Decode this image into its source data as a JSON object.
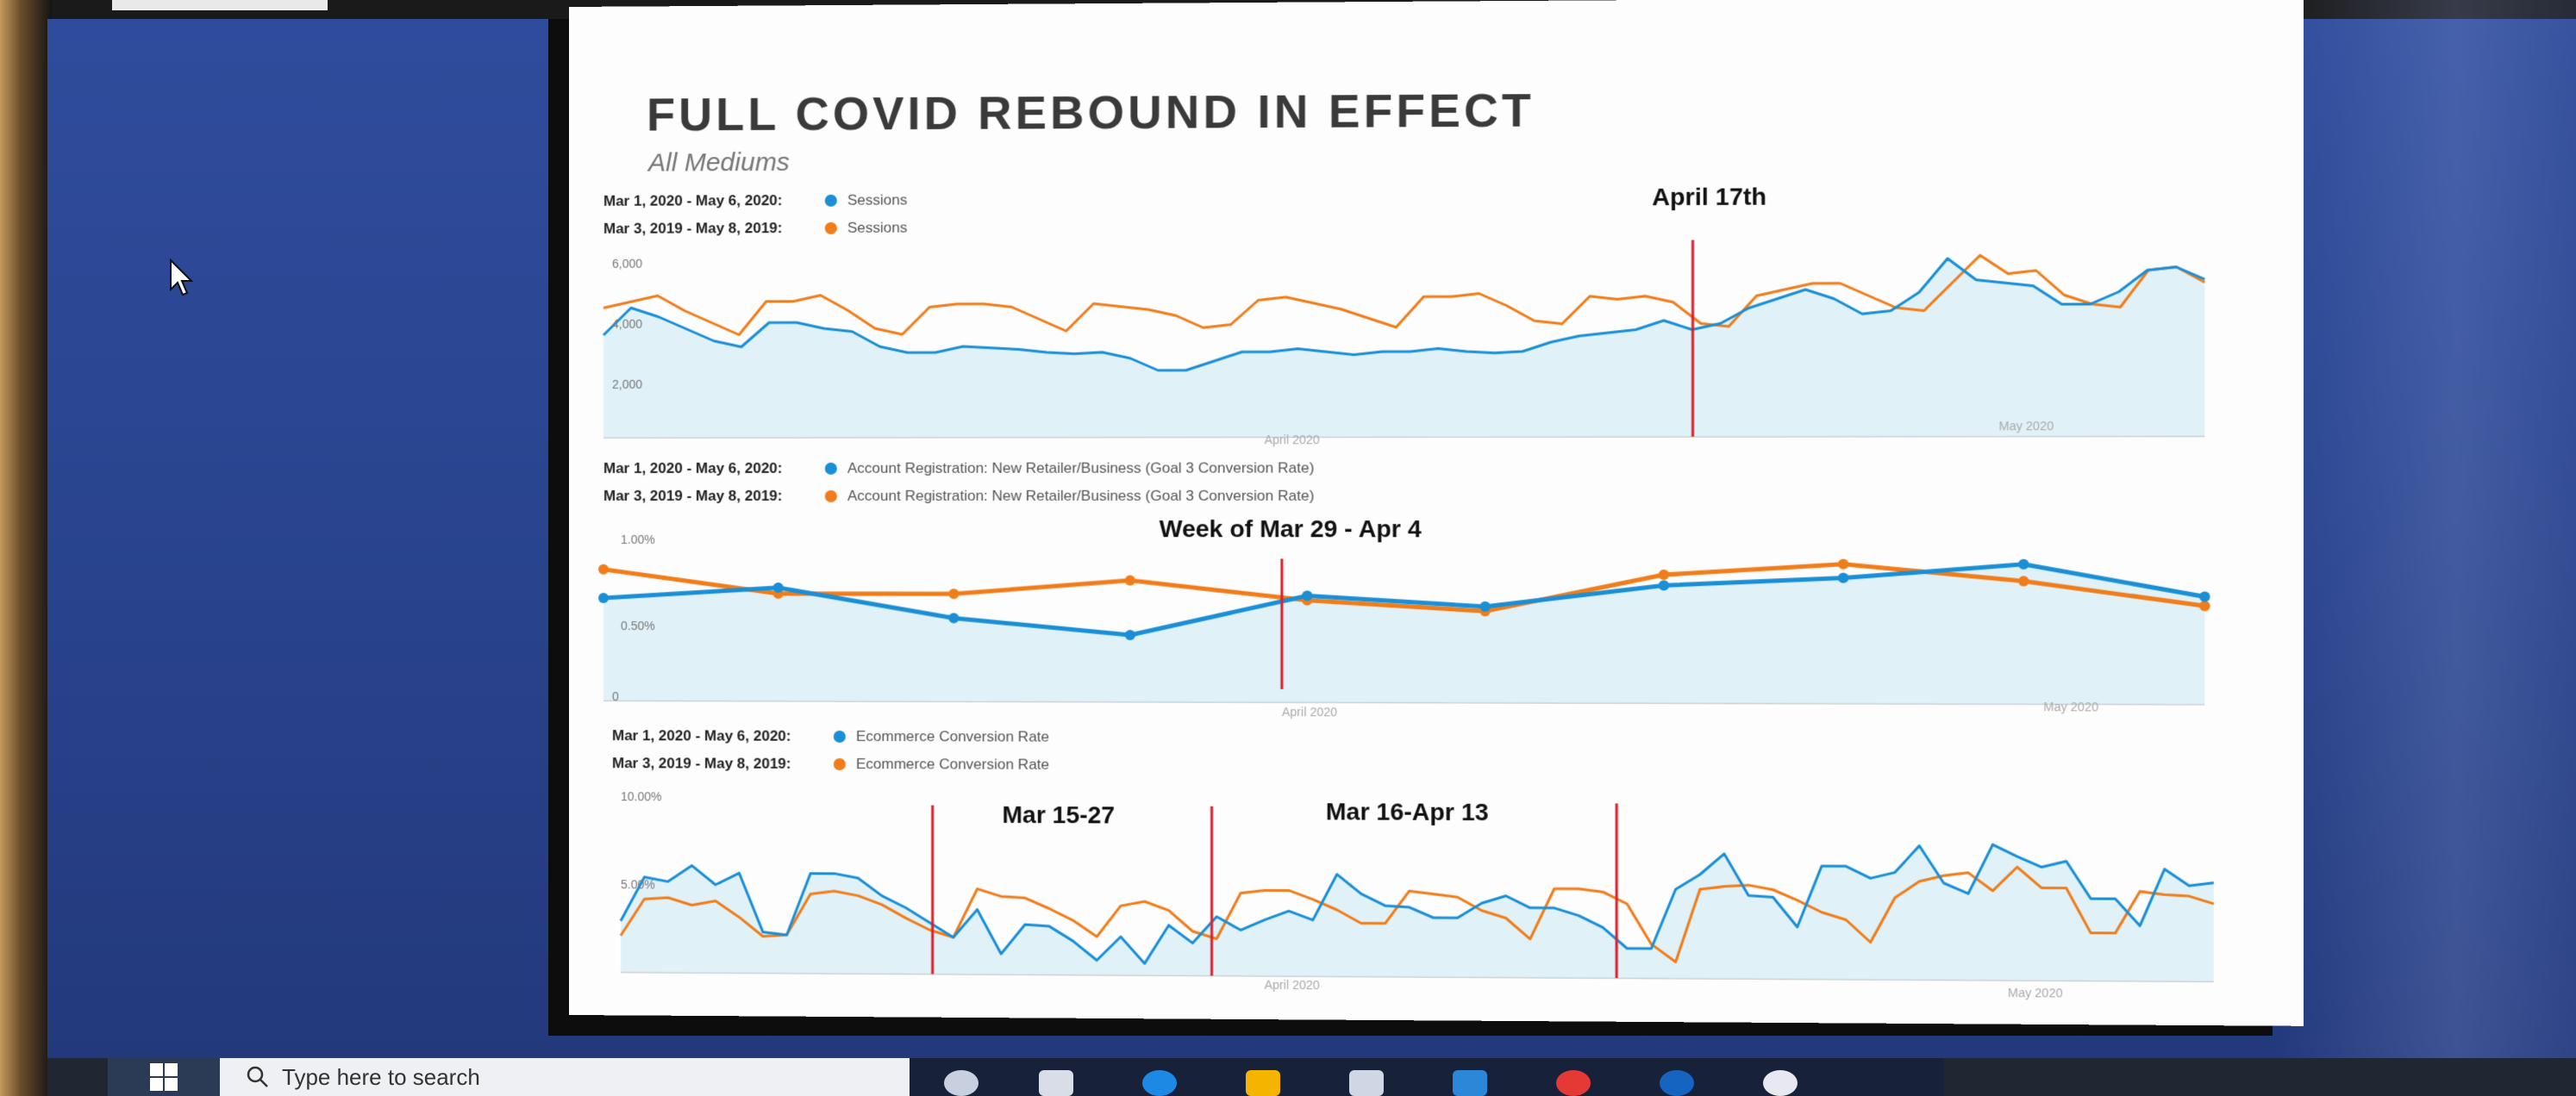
{
  "slide": {
    "title": "FULL COVID REBOUND IN EFFECT",
    "subtitle": "All Mediums"
  },
  "colors": {
    "current": "#1a8fd6",
    "previous": "#f07d1a",
    "marker": "#d8202c",
    "fill": "#d6eef6"
  },
  "chart1": {
    "legend": [
      {
        "date_range": "Mar 1, 2020 - May 6, 2020:",
        "series": "Sessions"
      },
      {
        "date_range": "Mar 3, 2019 - May 8, 2019:",
        "series": "Sessions"
      }
    ],
    "y_ticks": [
      "6,000",
      "4,000",
      "2,000"
    ],
    "x_ticks": [
      "April 2020",
      "May 2020"
    ],
    "annotation": "April 17th"
  },
  "chart2": {
    "legend": [
      {
        "date_range": "Mar 1, 2020 - May 6, 2020:",
        "series": "Account Registration: New Retailer/Business (Goal 3 Conversion Rate)"
      },
      {
        "date_range": "Mar 3, 2019 - May 8, 2019:",
        "series": "Account Registration: New Retailer/Business (Goal 3 Conversion Rate)"
      }
    ],
    "y_ticks": [
      "1.00%",
      "0.50%",
      "0"
    ],
    "x_ticks": [
      "April 2020",
      "May 2020"
    ],
    "annotation": "Week of Mar 29 - Apr 4"
  },
  "chart3": {
    "legend": [
      {
        "date_range": "Mar 1, 2020 - May 6, 2020:",
        "series": "Ecommerce Conversion Rate"
      },
      {
        "date_range": "Mar 3, 2019 - May 8, 2019:",
        "series": "Ecommerce Conversion Rate"
      }
    ],
    "y_ticks": [
      "10.00%",
      "5.00%"
    ],
    "x_ticks": [
      "April 2020",
      "May 2020"
    ],
    "annotation_1": "Mar 15-27",
    "annotation_2": "Mar 16-Apr 13"
  },
  "chart_data": [
    {
      "type": "line",
      "title": "",
      "ylim": [
        0,
        6000
      ],
      "series": [
        {
          "name": "Sessions",
          "values": [
            3400,
            4300,
            4000,
            3600,
            3200,
            3000,
            3800,
            3800,
            3600,
            3500,
            3000,
            2800,
            2800,
            3000,
            2950,
            2900,
            2800,
            2750,
            2800,
            2600,
            2200,
            2200,
            2500,
            2800,
            2800,
            2900,
            2800,
            2700,
            2800,
            2800,
            2900,
            2800,
            2750,
            2800,
            3100,
            3300,
            3400,
            3500,
            3800,
            3500,
            3700,
            4200,
            4500,
            4800,
            4500,
            4000,
            4100,
            4700,
            5800,
            5100,
            5000,
            4900,
            4300,
            4300,
            4700,
            5400,
            5500,
            5100
          ]
        },
        {
          "name": "Sessions",
          "values": [
            4300,
            4500,
            4700,
            4200,
            3800,
            3400,
            4500,
            4500,
            4700,
            4200,
            3600,
            3400,
            4300,
            4400,
            4400,
            4300,
            3900,
            3500,
            4400,
            4300,
            4200,
            4000,
            3600,
            3700,
            4500,
            4600,
            4400,
            4200,
            3900,
            3600,
            4600,
            4600,
            4700,
            4300,
            3800,
            3700,
            4600,
            4500,
            4600,
            4400,
            3700,
            3600,
            4600,
            4800,
            5000,
            5000,
            4600,
            4200,
            4100,
            5000,
            5900,
            5300,
            5400,
            4600,
            4300,
            4200,
            5400,
            5500,
            5000
          ]
        }
      ]
    },
    {
      "type": "line",
      "title": "",
      "ylim": [
        0,
        1.0
      ],
      "series": [
        {
          "name": "Account Registration: New Retailer/Business (Goal 3 Conversion Rate)",
          "values": [
            0.68,
            0.75,
            0.55,
            0.44,
            0.7,
            0.63,
            0.77,
            0.82,
            0.91,
            0.7
          ]
        },
        {
          "name": "Account Registration: New Retailer/Business (Goal 3 Conversion Rate)",
          "values": [
            0.87,
            0.71,
            0.71,
            0.8,
            0.67,
            0.6,
            0.84,
            0.91,
            0.8,
            0.64
          ]
        }
      ]
    },
    {
      "type": "line",
      "title": "",
      "ylim": [
        0,
        10
      ],
      "series": [
        {
          "name": "Ecommerce Conversion Rate",
          "values": [
            3.5,
            6.5,
            6.2,
            7.3,
            6.0,
            6.8,
            2.8,
            2.6,
            6.8,
            6.8,
            6.5,
            5.3,
            4.5,
            3.5,
            2.5,
            4.4,
            1.4,
            3.4,
            3.3,
            2.3,
            1.0,
            2.6,
            0.8,
            3.4,
            2.2,
            4.0,
            3.1,
            3.8,
            4.4,
            3.8,
            6.9,
            5.6,
            4.8,
            4.7,
            4.0,
            4.0,
            5.0,
            5.5,
            4.7,
            4.7,
            4.2,
            3.4,
            2.0,
            2.0,
            6.0,
            7.0,
            8.4,
            5.6,
            5.5,
            3.5,
            7.6,
            7.6,
            6.8,
            7.2,
            9.0,
            6.5,
            5.8,
            9.1,
            8.3,
            7.6,
            8.0,
            5.5,
            5.5,
            3.7,
            7.5,
            6.4,
            6.6
          ]
        },
        {
          "name": "Ecommerce Conversion Rate",
          "values": [
            2.5,
            5.0,
            5.1,
            4.6,
            4.9,
            3.8,
            2.5,
            2.6,
            5.4,
            5.6,
            5.3,
            4.7,
            3.8,
            3.0,
            2.5,
            5.8,
            5.3,
            5.2,
            4.5,
            3.7,
            2.6,
            4.7,
            5.0,
            4.4,
            3.0,
            2.5,
            5.6,
            5.8,
            5.8,
            5.2,
            4.5,
            3.6,
            3.6,
            5.8,
            5.6,
            5.4,
            4.5,
            4.0,
            2.6,
            6.0,
            6.0,
            5.8,
            5.0,
            2.3,
            1.1,
            6.0,
            6.2,
            6.3,
            6.0,
            5.3,
            4.5,
            4.0,
            2.5,
            5.5,
            6.6,
            7.0,
            7.2,
            6.0,
            7.6,
            6.2,
            6.2,
            3.2,
            3.2,
            6.0,
            5.8,
            5.7,
            5.2
          ]
        }
      ]
    }
  ],
  "taskbar": {
    "search_placeholder": "Type here to search"
  }
}
